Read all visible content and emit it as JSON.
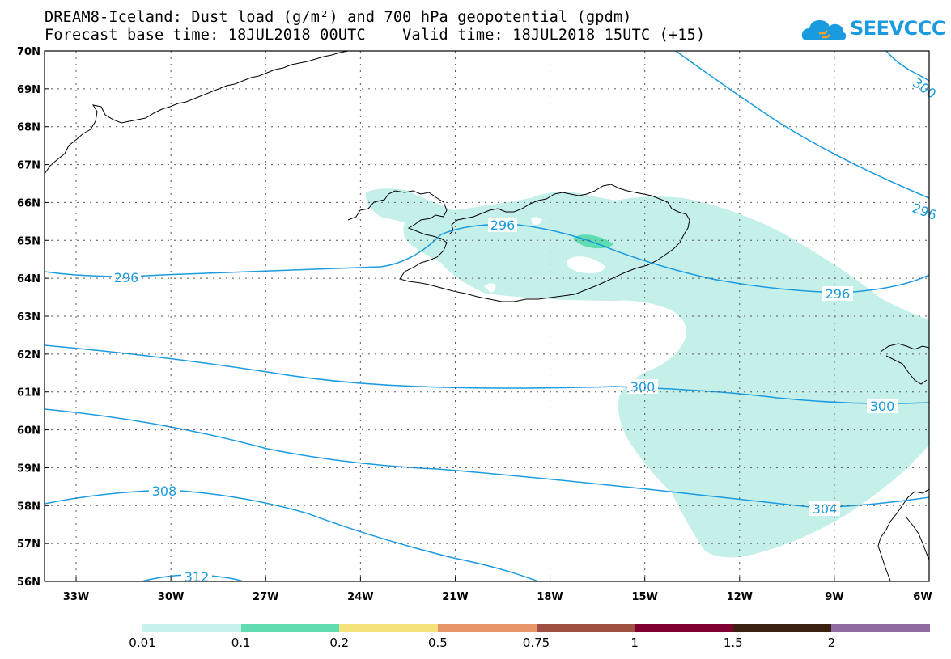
{
  "title_line1": "DREAM8-Iceland: Dust load (g/m²) and 700 hPa geopotential (gpdm)",
  "title_line2": "Forecast base time: 18JUL2018 00UTC    Valid time: 18JUL2018 15UTC (+15)",
  "logo_text": "SEEVCCC",
  "colors": {
    "contour": "#1a9be0",
    "dust_light": "#c5f0ea",
    "dust_medium": "#5fdcb0"
  },
  "lat_labels": [
    "70N",
    "69N",
    "68N",
    "67N",
    "66N",
    "65N",
    "64N",
    "63N",
    "62N",
    "61N",
    "60N",
    "59N",
    "58N",
    "57N",
    "56N"
  ],
  "lon_labels": [
    "33W",
    "30W",
    "27W",
    "24W",
    "21W",
    "18W",
    "15W",
    "12W",
    "9W",
    "6W"
  ],
  "contour_labels": [
    "296",
    "296",
    "296",
    "300",
    "300",
    "304",
    "308",
    "312",
    "300",
    "296"
  ],
  "colorbar": {
    "labels": [
      "0.01",
      "0.1",
      "0.2",
      "0.5",
      "0.75",
      "1",
      "1.5",
      "2"
    ],
    "colors": [
      "#c8f2ec",
      "#5fdcb0",
      "#f5e27a",
      "#e8956a",
      "#a05040",
      "#800030",
      "#3a2010",
      "#8e6aa0"
    ]
  }
}
